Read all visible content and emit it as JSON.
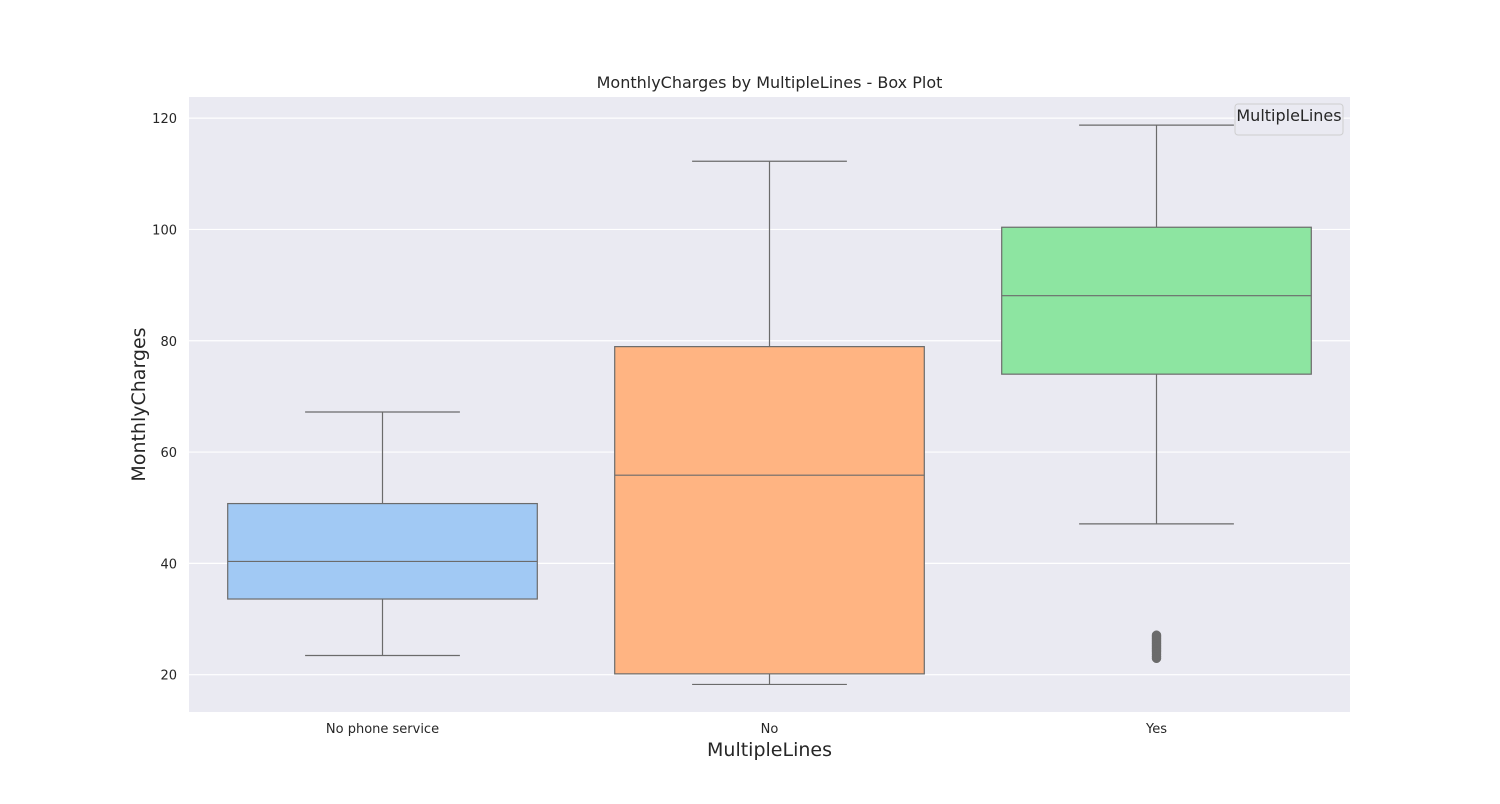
{
  "chart_data": {
    "type": "box",
    "title": "MonthlyCharges by MultipleLines - Box Plot",
    "xlabel": "MultipleLines",
    "ylabel": "MonthlyCharges",
    "categories": [
      "No phone service",
      "No",
      "Yes"
    ],
    "ylim": [
      13.3,
      123.8
    ],
    "yticks": [
      20,
      40,
      60,
      80,
      100,
      120
    ],
    "grid": true,
    "background": "#eaeaf2",
    "legend": {
      "title": "MultipleLines",
      "placement": "top-right"
    },
    "boxes": [
      {
        "category": "No phone service",
        "whisker_low": 23.45,
        "q1": 33.6,
        "median": 40.35,
        "q3": 50.75,
        "whisker_high": 67.2,
        "outliers": [],
        "color": "#a1c9f4"
      },
      {
        "category": "No",
        "whisker_low": 18.25,
        "q1": 20.15,
        "median": 55.85,
        "q3": 78.95,
        "whisker_high": 112.25,
        "outliers": [],
        "color": "#ffb482"
      },
      {
        "category": "Yes",
        "whisker_low": 47.1,
        "q1": 74.0,
        "median": 88.1,
        "q3": 100.4,
        "whisker_high": 118.75,
        "outliers": [
          22.95,
          23.3,
          23.7,
          24.1,
          24.4,
          24.7,
          25.0,
          25.3,
          25.6,
          25.9,
          26.2,
          26.5,
          26.8,
          27.1
        ],
        "color": "#8de5a1"
      }
    ]
  }
}
